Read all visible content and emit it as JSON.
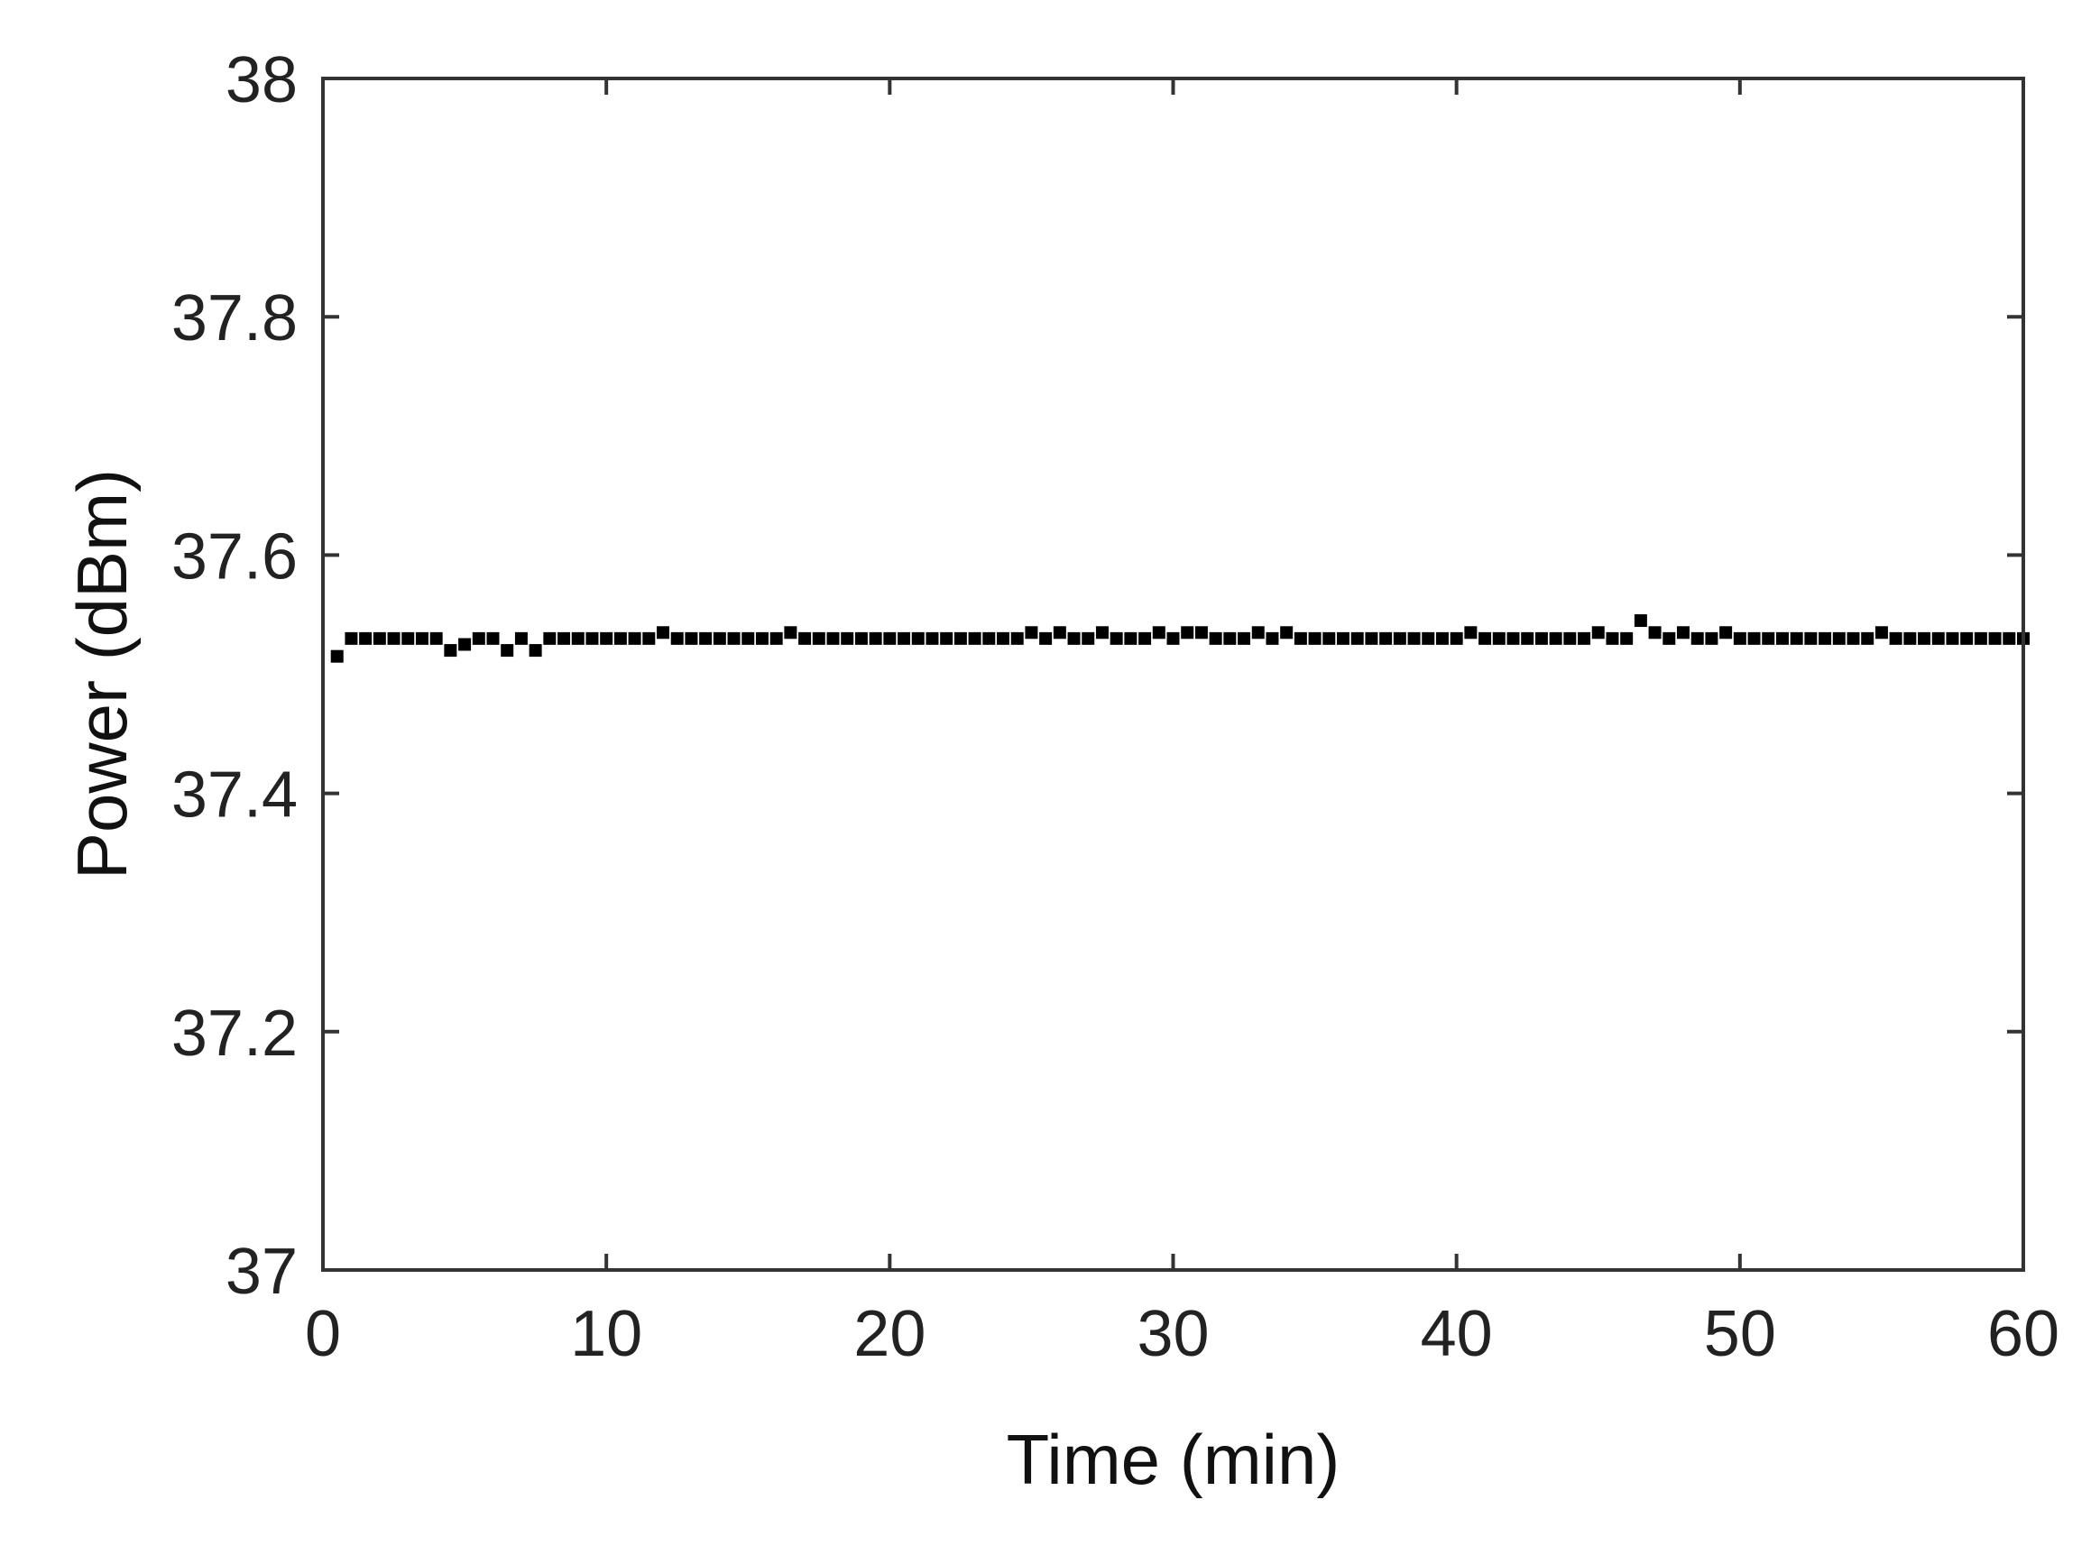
{
  "chart_data": {
    "type": "scatter",
    "title": "",
    "xlabel": "Time (min)",
    "ylabel": "Power (dBm)",
    "xlim": [
      0,
      60
    ],
    "ylim": [
      37,
      38
    ],
    "xticks": [
      0,
      10,
      20,
      30,
      40,
      50,
      60
    ],
    "xtick_labels": [
      "0",
      "10",
      "20",
      "30",
      "40",
      "50",
      "60"
    ],
    "yticks": [
      37,
      37.2,
      37.4,
      37.6,
      37.8,
      38
    ],
    "ytick_labels": [
      "37",
      "37.2",
      "37.4",
      "37.6",
      "37.8",
      "38"
    ],
    "grid": false,
    "marker_color": "#000000",
    "series": [
      {
        "x": [
          0.5,
          1.0,
          1.5,
          2.0,
          2.5,
          3.0,
          3.5,
          4.0,
          4.5,
          5.0,
          5.5,
          6.0,
          6.5,
          7.0,
          7.5,
          8.0,
          8.5,
          9.0,
          9.5,
          10.0,
          10.5,
          11.0,
          11.5,
          12.0,
          12.5,
          13.0,
          13.5,
          14.0,
          14.5,
          15.0,
          15.5,
          16.0,
          16.5,
          17.0,
          17.5,
          18.0,
          18.5,
          19.0,
          19.5,
          20.0,
          20.5,
          21.0,
          21.5,
          22.0,
          22.5,
          23.0,
          23.5,
          24.0,
          24.5,
          25.0,
          25.5,
          26.0,
          26.5,
          27.0,
          27.5,
          28.0,
          28.5,
          29.0,
          29.5,
          30.0,
          30.5,
          31.0,
          31.5,
          32.0,
          32.5,
          33.0,
          33.5,
          34.0,
          34.5,
          35.0,
          35.5,
          36.0,
          36.5,
          37.0,
          37.5,
          38.0,
          38.5,
          39.0,
          39.5,
          40.0,
          40.5,
          41.0,
          41.5,
          42.0,
          42.5,
          43.0,
          43.5,
          44.0,
          44.5,
          45.0,
          45.5,
          46.0,
          46.5,
          47.0,
          47.5,
          48.0,
          48.5,
          49.0,
          49.5,
          50.0,
          50.5,
          51.0,
          51.5,
          52.0,
          52.5,
          53.0,
          53.5,
          54.0,
          54.5,
          55.0,
          55.5,
          56.0,
          56.5,
          57.0,
          57.5,
          58.0,
          58.5,
          59.0,
          59.5,
          60.0
        ],
        "y": [
          37.515,
          37.53,
          37.53,
          37.53,
          37.53,
          37.53,
          37.53,
          37.53,
          37.52,
          37.525,
          37.53,
          37.53,
          37.52,
          37.53,
          37.52,
          37.53,
          37.53,
          37.53,
          37.53,
          37.53,
          37.53,
          37.53,
          37.53,
          37.535,
          37.53,
          37.53,
          37.53,
          37.53,
          37.53,
          37.53,
          37.53,
          37.53,
          37.535,
          37.53,
          37.53,
          37.53,
          37.53,
          37.53,
          37.53,
          37.53,
          37.53,
          37.53,
          37.53,
          37.53,
          37.53,
          37.53,
          37.53,
          37.53,
          37.53,
          37.535,
          37.53,
          37.535,
          37.53,
          37.53,
          37.535,
          37.53,
          37.53,
          37.53,
          37.535,
          37.53,
          37.535,
          37.535,
          37.53,
          37.53,
          37.53,
          37.535,
          37.53,
          37.535,
          37.53,
          37.53,
          37.53,
          37.53,
          37.53,
          37.53,
          37.53,
          37.53,
          37.53,
          37.53,
          37.53,
          37.53,
          37.535,
          37.53,
          37.53,
          37.53,
          37.53,
          37.53,
          37.53,
          37.53,
          37.53,
          37.535,
          37.53,
          37.53,
          37.545,
          37.535,
          37.53,
          37.535,
          37.53,
          37.53,
          37.535,
          37.53,
          37.53,
          37.53,
          37.53,
          37.53,
          37.53,
          37.53,
          37.53,
          37.53,
          37.53,
          37.535,
          37.53,
          37.53,
          37.53,
          37.53,
          37.53,
          37.53,
          37.53,
          37.53,
          37.53,
          37.53
        ]
      }
    ]
  }
}
